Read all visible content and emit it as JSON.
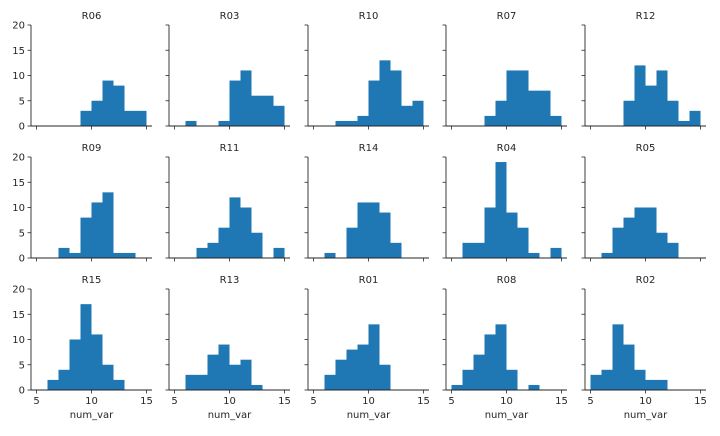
{
  "chart_data": [
    {
      "type": "bar",
      "title": "R06",
      "bin_edges": [
        9,
        10,
        11,
        12,
        13,
        14,
        15
      ],
      "counts": [
        3,
        5,
        9,
        8,
        3,
        3
      ]
    },
    {
      "type": "bar",
      "title": "R03",
      "bin_edges": [
        6,
        7,
        8,
        9,
        10,
        11,
        12,
        13,
        14,
        15
      ],
      "counts": [
        1,
        0,
        0,
        1,
        9,
        11,
        6,
        6,
        4
      ]
    },
    {
      "type": "bar",
      "title": "R10",
      "bin_edges": [
        7,
        8,
        9,
        10,
        11,
        12,
        13,
        14,
        15
      ],
      "counts": [
        1,
        1,
        2,
        9,
        13,
        11,
        4,
        5
      ]
    },
    {
      "type": "bar",
      "title": "R07",
      "bin_edges": [
        8,
        9,
        10,
        11,
        12,
        13,
        14,
        15
      ],
      "counts": [
        2,
        5,
        11,
        11,
        7,
        7,
        2
      ]
    },
    {
      "type": "bar",
      "title": "R12",
      "bin_edges": [
        8,
        9,
        10,
        11,
        12,
        13,
        14,
        15
      ],
      "counts": [
        5,
        12,
        8,
        11,
        5,
        1,
        3
      ]
    },
    {
      "type": "bar",
      "title": "R09",
      "bin_edges": [
        7,
        8,
        9,
        10,
        11,
        12,
        13,
        14
      ],
      "counts": [
        2,
        1,
        8,
        11,
        13,
        1,
        1
      ]
    },
    {
      "type": "bar",
      "title": "R11",
      "bin_edges": [
        7,
        8,
        9,
        10,
        11,
        12,
        13,
        14,
        15
      ],
      "counts": [
        2,
        3,
        6,
        12,
        10,
        5,
        0,
        2
      ]
    },
    {
      "type": "bar",
      "title": "R14",
      "bin_edges": [
        6,
        7,
        8,
        9,
        10,
        11,
        12,
        13
      ],
      "counts": [
        1,
        0,
        6,
        11,
        11,
        9,
        3
      ]
    },
    {
      "type": "bar",
      "title": "R04",
      "bin_edges": [
        6,
        7,
        8,
        9,
        10,
        11,
        12,
        13,
        14,
        15
      ],
      "counts": [
        3,
        3,
        10,
        19,
        9,
        6,
        1,
        0,
        2
      ]
    },
    {
      "type": "bar",
      "title": "R05",
      "bin_edges": [
        6,
        7,
        8,
        9,
        10,
        11,
        12,
        13
      ],
      "counts": [
        1,
        6,
        8,
        10,
        10,
        5,
        3
      ]
    },
    {
      "type": "bar",
      "title": "R15",
      "bin_edges": [
        6,
        7,
        8,
        9,
        10,
        11,
        12,
        13
      ],
      "counts": [
        2,
        4,
        10,
        17,
        11,
        5,
        2
      ]
    },
    {
      "type": "bar",
      "title": "R13",
      "bin_edges": [
        6,
        7,
        8,
        9,
        10,
        11,
        12,
        13
      ],
      "counts": [
        3,
        3,
        7,
        9,
        5,
        6,
        1
      ]
    },
    {
      "type": "bar",
      "title": "R01",
      "bin_edges": [
        6,
        7,
        8,
        9,
        10,
        11,
        12
      ],
      "counts": [
        3,
        6,
        8,
        9,
        13,
        5
      ]
    },
    {
      "type": "bar",
      "title": "R08",
      "bin_edges": [
        5,
        6,
        7,
        8,
        9,
        10,
        11,
        12,
        13
      ],
      "counts": [
        1,
        4,
        7,
        11,
        13,
        4,
        0,
        1
      ]
    },
    {
      "type": "bar",
      "title": "R02",
      "bin_edges": [
        5,
        6,
        7,
        8,
        9,
        10,
        11,
        12
      ],
      "counts": [
        3,
        4,
        13,
        9,
        4,
        2,
        2
      ]
    }
  ],
  "shared": {
    "xlabel": "num_var",
    "xlim": [
      4.5,
      15.5
    ],
    "ylim": [
      0,
      20
    ],
    "xticks": [
      "5",
      "10",
      "15"
    ],
    "yticks": [
      "0",
      "5",
      "10",
      "15",
      "20"
    ],
    "bar_color": "#1f77b4",
    "grid": false
  }
}
